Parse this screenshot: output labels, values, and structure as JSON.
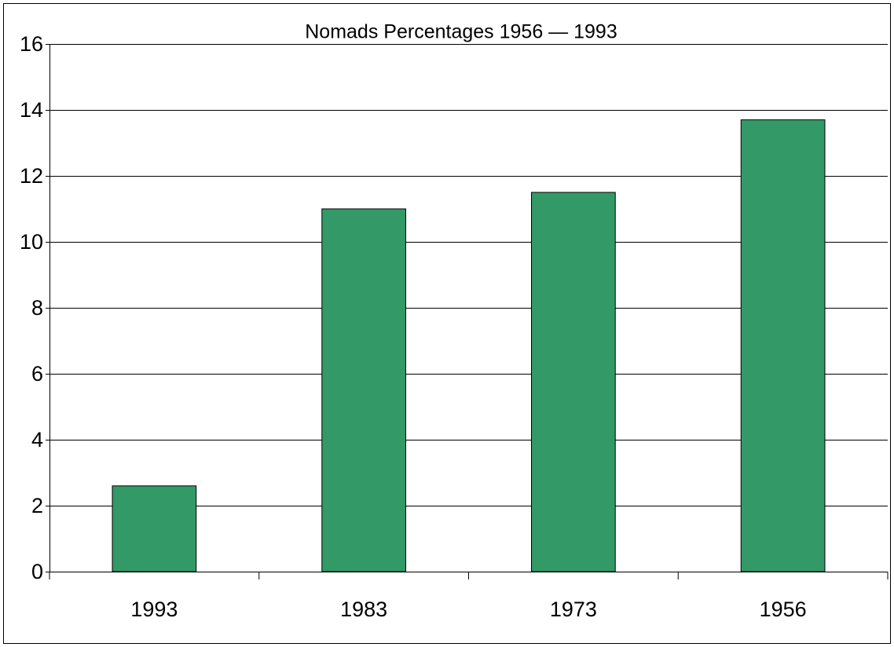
{
  "chart_data": {
    "type": "bar",
    "title": "Nomads Percentages   1956 — 1993",
    "categories": [
      "1993",
      "1983",
      "1973",
      "1956"
    ],
    "values": [
      2.6,
      11.0,
      11.5,
      13.7
    ],
    "color": "#339966",
    "ylim": [
      0,
      16
    ],
    "yticks": [
      0,
      2,
      4,
      6,
      8,
      10,
      12,
      14,
      16
    ],
    "grid": true
  }
}
